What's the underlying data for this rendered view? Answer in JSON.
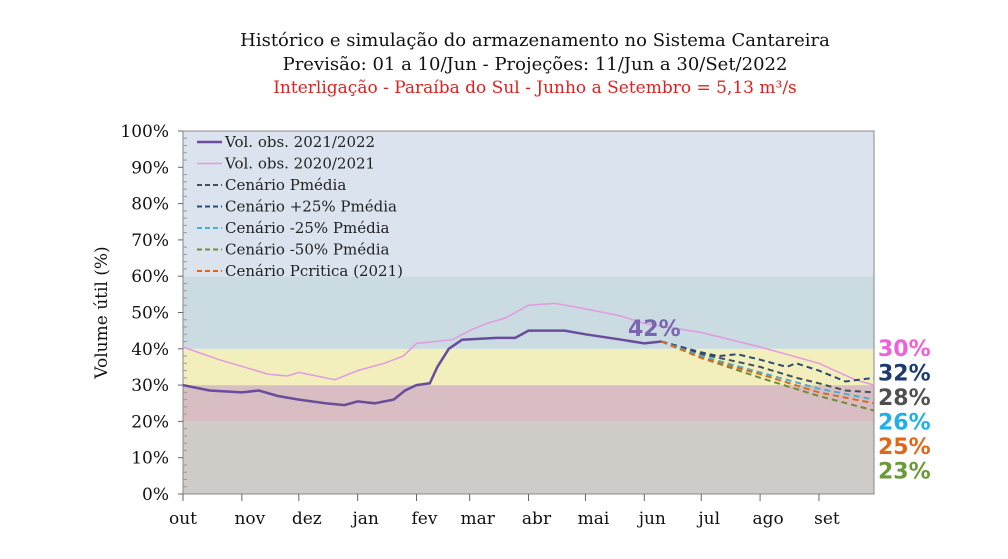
{
  "title": "Histórico e simulação do armazenamento no Sistema Cantareira",
  "subtitle": "Previsão: 01 a 10/Jun - Projeções: 11/Jun a 30/Set/2022",
  "note": "Interligação - Paraíba do Sul - Junho a Setembro = 5,13 m³/s",
  "chart_data": {
    "type": "line",
    "ylabel": "Volume útil (%)",
    "ylim": [
      0,
      100
    ],
    "yticks": [
      "0%",
      "10%",
      "20%",
      "30%",
      "40%",
      "50%",
      "60%",
      "70%",
      "80%",
      "90%",
      "100%"
    ],
    "xticks": [
      "out",
      "nov",
      "dez",
      "jan",
      "fev",
      "mar",
      "abr",
      "mai",
      "jun",
      "jul",
      "ago",
      "set"
    ],
    "xlim": [
      "2021-10-01",
      "2022-09-30"
    ],
    "bands": [
      {
        "from": 0,
        "to": 20,
        "color": "#cfcbc6"
      },
      {
        "from": 20,
        "to": 30,
        "color": "#d8bec2"
      },
      {
        "from": 30,
        "to": 40,
        "color": "#f3efbc"
      },
      {
        "from": 40,
        "to": 60,
        "color": "#cbdbe2"
      },
      {
        "from": 60,
        "to": 100,
        "color": "#dbe4ee"
      }
    ],
    "legend_position": "top-left",
    "annotation": "42%",
    "series": [
      {
        "name": "Vol. obs. 2021/2022",
        "color": "#6a4c9c",
        "dash": false,
        "width": 2.5,
        "points": [
          [
            "2021-10-01",
            30
          ],
          [
            "2021-10-15",
            28.5
          ],
          [
            "2021-11-01",
            28
          ],
          [
            "2021-11-10",
            28.5
          ],
          [
            "2021-11-20",
            27
          ],
          [
            "2021-12-01",
            26
          ],
          [
            "2021-12-15",
            25
          ],
          [
            "2021-12-25",
            24.5
          ],
          [
            "2022-01-01",
            25.5
          ],
          [
            "2022-01-10",
            25
          ],
          [
            "2022-01-20",
            26
          ],
          [
            "2022-01-26",
            28.5
          ],
          [
            "2022-02-01",
            30
          ],
          [
            "2022-02-08",
            30.5
          ],
          [
            "2022-02-12",
            35
          ],
          [
            "2022-02-18",
            40
          ],
          [
            "2022-02-25",
            42.5
          ],
          [
            "2022-03-15",
            43
          ],
          [
            "2022-03-25",
            43
          ],
          [
            "2022-04-01",
            45
          ],
          [
            "2022-04-20",
            45
          ],
          [
            "2022-05-01",
            44
          ],
          [
            "2022-05-20",
            42.5
          ],
          [
            "2022-06-01",
            41.5
          ],
          [
            "2022-06-10",
            42
          ]
        ]
      },
      {
        "name": "Vol. obs. 2020/2021",
        "color": "#e09ae0",
        "dash": false,
        "width": 1.5,
        "points": [
          [
            "2021-10-01",
            40.5
          ],
          [
            "2021-10-20",
            37
          ],
          [
            "2021-11-15",
            33
          ],
          [
            "2021-11-25",
            32.5
          ],
          [
            "2021-12-01",
            33.5
          ],
          [
            "2021-12-20",
            31.5
          ],
          [
            "2022-01-01",
            34
          ],
          [
            "2022-01-15",
            36
          ],
          [
            "2022-01-25",
            38
          ],
          [
            "2022-02-01",
            41.5
          ],
          [
            "2022-02-20",
            42.5
          ],
          [
            "2022-03-01",
            45
          ],
          [
            "2022-03-10",
            47
          ],
          [
            "2022-03-20",
            48.5
          ],
          [
            "2022-04-01",
            52
          ],
          [
            "2022-04-15",
            52.5
          ],
          [
            "2022-05-01",
            51
          ],
          [
            "2022-05-20",
            49
          ],
          [
            "2022-06-01",
            47
          ],
          [
            "2022-07-01",
            44.5
          ],
          [
            "2022-08-01",
            40.5
          ],
          [
            "2022-09-01",
            36
          ],
          [
            "2022-09-20",
            31.5
          ],
          [
            "2022-09-30",
            30
          ]
        ]
      },
      {
        "name": "Cenário Pmédia",
        "color": "#44505a",
        "dash": true,
        "width": 2,
        "points": [
          [
            "2022-06-10",
            42
          ],
          [
            "2022-07-01",
            38.5
          ],
          [
            "2022-07-15",
            37
          ],
          [
            "2022-08-01",
            35
          ],
          [
            "2022-08-20",
            32
          ],
          [
            "2022-09-01",
            30.5
          ],
          [
            "2022-09-15",
            28.5
          ],
          [
            "2022-09-30",
            28
          ]
        ]
      },
      {
        "name": "Cenário +25% Pmédia",
        "color": "#2a4a78",
        "dash": true,
        "width": 2,
        "points": [
          [
            "2022-06-10",
            42
          ],
          [
            "2022-07-01",
            39
          ],
          [
            "2022-07-10",
            38
          ],
          [
            "2022-07-20",
            38.5
          ],
          [
            "2022-08-01",
            37
          ],
          [
            "2022-08-15",
            35
          ],
          [
            "2022-08-20",
            36
          ],
          [
            "2022-09-01",
            34
          ],
          [
            "2022-09-15",
            31
          ],
          [
            "2022-09-30",
            32
          ]
        ]
      },
      {
        "name": "Cenário -25% Pmédia",
        "color": "#4aaed0",
        "dash": true,
        "width": 2,
        "points": [
          [
            "2022-06-10",
            42
          ],
          [
            "2022-07-01",
            38
          ],
          [
            "2022-08-01",
            33.5
          ],
          [
            "2022-09-01",
            29
          ],
          [
            "2022-09-30",
            26
          ]
        ]
      },
      {
        "name": "Cenário -50% Pmédia",
        "color": "#6f8a3a",
        "dash": true,
        "width": 2,
        "points": [
          [
            "2022-06-10",
            42
          ],
          [
            "2022-07-01",
            37.5
          ],
          [
            "2022-08-01",
            32
          ],
          [
            "2022-09-01",
            27
          ],
          [
            "2022-09-30",
            23
          ]
        ]
      },
      {
        "name": "Cenário Pcritica (2021)",
        "color": "#d86a20",
        "dash": true,
        "width": 2,
        "points": [
          [
            "2022-06-10",
            42
          ],
          [
            "2022-07-01",
            37.5
          ],
          [
            "2022-08-01",
            33
          ],
          [
            "2022-09-01",
            28
          ],
          [
            "2022-09-30",
            25
          ]
        ]
      }
    ],
    "end_labels": [
      {
        "text": "30%",
        "color": "#f060d8"
      },
      {
        "text": "32%",
        "color": "#1e3a6e"
      },
      {
        "text": "28%",
        "color": "#505050"
      },
      {
        "text": "26%",
        "color": "#20b0e8"
      },
      {
        "text": "25%",
        "color": "#e06818"
      },
      {
        "text": "23%",
        "color": "#6a9a38"
      }
    ]
  }
}
